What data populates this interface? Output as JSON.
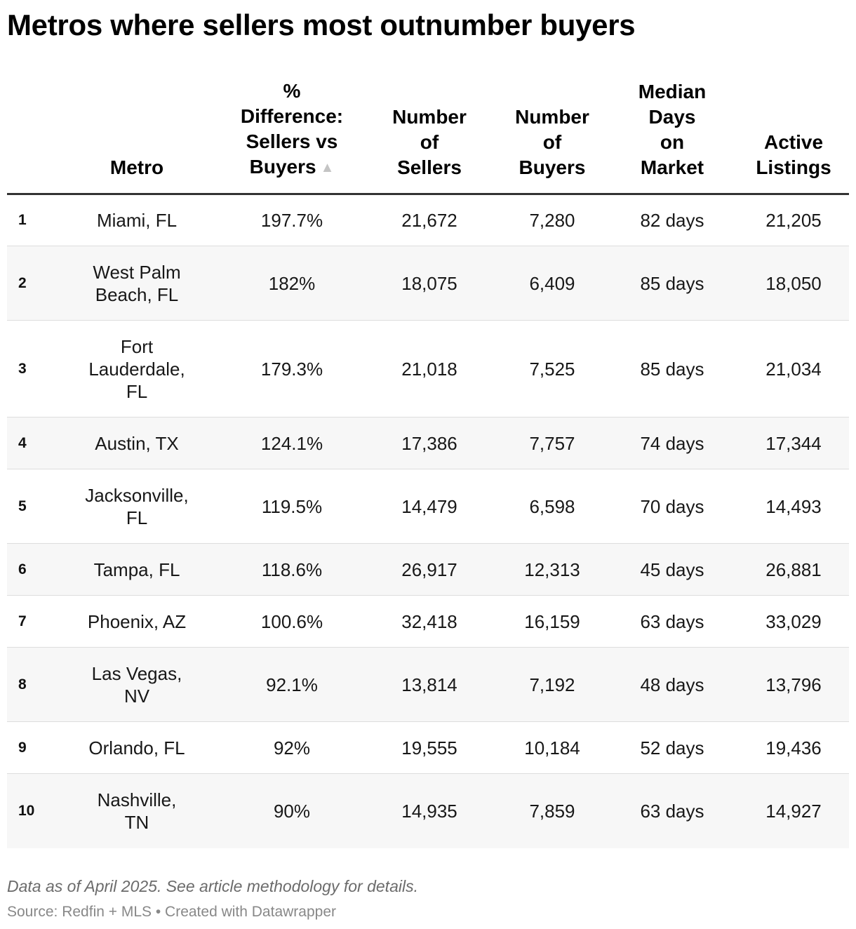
{
  "title": "Metros where sellers most outnumber buyers",
  "columns": {
    "rank": "",
    "metro": "Metro",
    "pct_diff": [
      "%",
      "Difference:",
      "Sellers vs",
      "Buyers"
    ],
    "sellers": [
      "Number",
      "of",
      "Sellers"
    ],
    "buyers": [
      "Number",
      "of",
      "Buyers"
    ],
    "days": [
      "Median",
      "Days",
      "on",
      "Market"
    ],
    "listings": [
      "Active",
      "Listings"
    ]
  },
  "sort_indicator": "▲",
  "rows": [
    {
      "rank": "1",
      "metro": [
        "Miami, FL"
      ],
      "pct_diff": "197.7%",
      "sellers": "21,672",
      "buyers": "7,280",
      "days": "82 days",
      "listings": "21,205"
    },
    {
      "rank": "2",
      "metro": [
        "West Palm",
        "Beach, FL"
      ],
      "pct_diff": "182%",
      "sellers": "18,075",
      "buyers": "6,409",
      "days": "85 days",
      "listings": "18,050"
    },
    {
      "rank": "3",
      "metro": [
        "Fort",
        "Lauderdale,",
        "FL"
      ],
      "pct_diff": "179.3%",
      "sellers": "21,018",
      "buyers": "7,525",
      "days": "85 days",
      "listings": "21,034"
    },
    {
      "rank": "4",
      "metro": [
        "Austin, TX"
      ],
      "pct_diff": "124.1%",
      "sellers": "17,386",
      "buyers": "7,757",
      "days": "74 days",
      "listings": "17,344"
    },
    {
      "rank": "5",
      "metro": [
        "Jacksonville,",
        "FL"
      ],
      "pct_diff": "119.5%",
      "sellers": "14,479",
      "buyers": "6,598",
      "days": "70 days",
      "listings": "14,493"
    },
    {
      "rank": "6",
      "metro": [
        "Tampa, FL"
      ],
      "pct_diff": "118.6%",
      "sellers": "26,917",
      "buyers": "12,313",
      "days": "45 days",
      "listings": "26,881"
    },
    {
      "rank": "7",
      "metro": [
        "Phoenix, AZ"
      ],
      "pct_diff": "100.6%",
      "sellers": "32,418",
      "buyers": "16,159",
      "days": "63 days",
      "listings": "33,029"
    },
    {
      "rank": "8",
      "metro": [
        "Las Vegas,",
        "NV"
      ],
      "pct_diff": "92.1%",
      "sellers": "13,814",
      "buyers": "7,192",
      "days": "48 days",
      "listings": "13,796"
    },
    {
      "rank": "9",
      "metro": [
        "Orlando, FL"
      ],
      "pct_diff": "92%",
      "sellers": "19,555",
      "buyers": "10,184",
      "days": "52 days",
      "listings": "19,436"
    },
    {
      "rank": "10",
      "metro": [
        "Nashville,",
        "TN"
      ],
      "pct_diff": "90%",
      "sellers": "14,935",
      "buyers": "7,859",
      "days": "63 days",
      "listings": "14,927"
    }
  ],
  "notes": "Data as of April 2025. See article methodology for details.",
  "source": "Source: Redfin + MLS • Created with Datawrapper",
  "chart_data": {
    "type": "table",
    "title": "Metros where sellers most outnumber buyers",
    "columns": [
      "",
      "Metro",
      "% Difference: Sellers vs Buyers",
      "Number of Sellers",
      "Number of Buyers",
      "Median Days on Market",
      "Active Listings"
    ],
    "sorted_by": "% Difference: Sellers vs Buyers",
    "sort_direction": "descending",
    "rows": [
      [
        "1",
        "Miami, FL",
        197.7,
        21672,
        7280,
        82,
        21205
      ],
      [
        "2",
        "West Palm Beach, FL",
        182,
        18075,
        6409,
        85,
        18050
      ],
      [
        "3",
        "Fort Lauderdale, FL",
        179.3,
        21018,
        7525,
        85,
        21034
      ],
      [
        "4",
        "Austin, TX",
        124.1,
        17386,
        7757,
        74,
        17344
      ],
      [
        "5",
        "Jacksonville, FL",
        119.5,
        14479,
        6598,
        70,
        14493
      ],
      [
        "6",
        "Tampa, FL",
        118.6,
        26917,
        12313,
        45,
        26881
      ],
      [
        "7",
        "Phoenix, AZ",
        100.6,
        32418,
        16159,
        63,
        33029
      ],
      [
        "8",
        "Las Vegas, NV",
        92.1,
        13814,
        7192,
        48,
        13796
      ],
      [
        "9",
        "Orlando, FL",
        92,
        19555,
        10184,
        52,
        19436
      ],
      [
        "10",
        "Nashville, TN",
        90,
        14935,
        7859,
        63,
        14927
      ]
    ],
    "notes": "Data as of April 2025. See article methodology for details.",
    "source": "Source: Redfin + MLS • Created with Datawrapper"
  }
}
